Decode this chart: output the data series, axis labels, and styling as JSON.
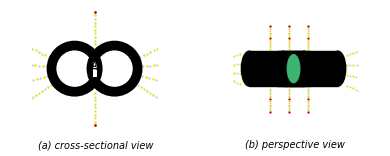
{
  "fig_width": 3.9,
  "fig_height": 1.56,
  "dpi": 100,
  "bg_color": "#3ab46e",
  "caption_left": "(a) cross-sectional view",
  "caption_right": "(b) perspective view",
  "caption_fontsize": 7,
  "sds_yellow": "#e8e800",
  "sds_red": "#cc0000",
  "sds_white": "#c8c8c8",
  "cnt_black": "#050505"
}
